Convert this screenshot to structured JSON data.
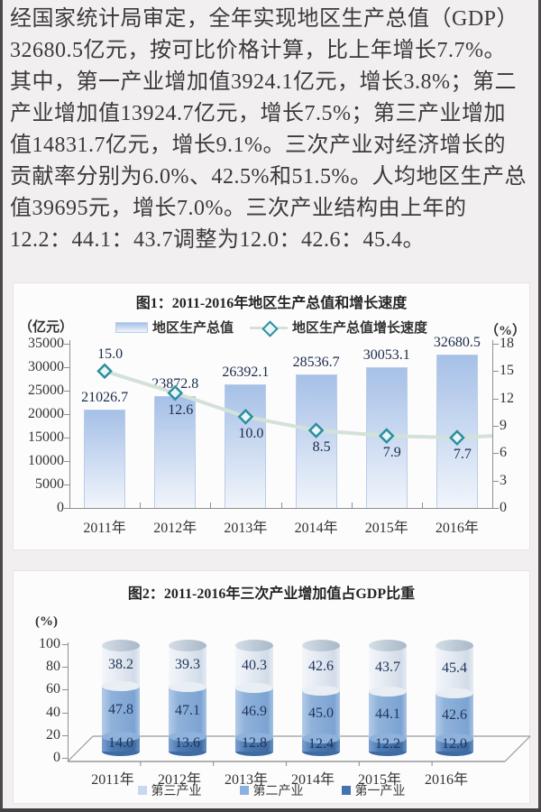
{
  "page": {
    "background": "#f1eff0",
    "edge_color": "#4b494b",
    "panel_background": "#fcfcfc",
    "text_color": "#3b393a"
  },
  "paragraph": {
    "lines": [
      "经国家统计局审定，全年实现地区生产总值（GDP）",
      "32680.5亿元，按可比价格计算，比上年增长7.7%。",
      "其中，第一产业增加值3924.1亿元，增长3.8%；第二",
      "产业增加值13924.7亿元，增长7.5%；第三产业增加",
      "值14831.7亿元，增长9.1%。三次产业对经济增长的",
      "贡献率分别为6.0%、42.5%和51.5%。人均地区生产总",
      "值39695元，增长7.0%。三次产业结构由上年的",
      "12.2：44.1：43.7调整为12.0：42.6：45.4。"
    ]
  },
  "chart_data": [
    {
      "type": "bar",
      "subtype": "bar-with-line",
      "title": "图1：2011-2016年地区生产总值和增长速度",
      "categories": [
        "2011年",
        "2012年",
        "2013年",
        "2014年",
        "2015年",
        "2016年"
      ],
      "series": [
        {
          "name": "地区生产总值",
          "type": "bar",
          "axis": "left",
          "values": [
            21026.7,
            23872.8,
            26392.1,
            28536.7,
            30053.1,
            32680.5
          ]
        },
        {
          "name": "地区生产总值增长速度",
          "type": "line",
          "axis": "right",
          "values": [
            15.0,
            12.6,
            10.0,
            8.5,
            7.9,
            7.7
          ]
        }
      ],
      "left_axis": {
        "label": "（亿元）",
        "ticks": [
          35000,
          30000,
          25000,
          20000,
          15000,
          10000,
          5000,
          0
        ],
        "min": 0,
        "max": 35000
      },
      "right_axis": {
        "label": "（%）",
        "ticks": [
          18,
          15,
          12,
          9,
          6,
          3,
          0
        ],
        "min": 0,
        "max": 18
      },
      "legend_position": "top",
      "grid": false,
      "colors": {
        "bar_top": "#a6c0e7",
        "bar_bottom": "#f1f5fb",
        "bar_border": "#b9cde9",
        "line": "#d3e2d8",
        "marker_stroke": "#2d8f9e",
        "marker_fill": "#e8f5f6",
        "value_label": "#1c2b4a"
      }
    },
    {
      "type": "bar",
      "subtype": "stacked-cylinder-3d",
      "title": "图2：2011-2016年三次产业增加值占GDP比重",
      "ylabel": "(%)",
      "categories": [
        "2011年",
        "2012年",
        "2013年",
        "2014年",
        "2015年",
        "2016年"
      ],
      "series": [
        {
          "name": "第一产业",
          "values": [
            14.0,
            13.6,
            12.8,
            12.4,
            12.2,
            12.0
          ],
          "color": "#4d7cb5"
        },
        {
          "name": "第二产业",
          "values": [
            47.8,
            47.1,
            46.9,
            45.0,
            44.1,
            42.6
          ],
          "color": "#8fb2da"
        },
        {
          "name": "第三产业",
          "values": [
            38.2,
            39.3,
            40.3,
            42.6,
            43.7,
            45.4
          ],
          "color": "#e9eef5"
        }
      ],
      "stack_order_bottom_to_top": [
        "第一产业",
        "第二产业",
        "第三产业"
      ],
      "y_ticks": [
        0,
        20,
        40,
        60,
        80,
        100
      ],
      "ylim": [
        0,
        100
      ],
      "legend": [
        "第三产业",
        "第二产业",
        "第一产业"
      ],
      "legend_swatch_colors": {
        "第三产业": "#c7d9ee",
        "第二产业": "#8ab1e0",
        "第一产业": "#4473ad"
      },
      "legend_position": "bottom",
      "grid": false
    }
  ]
}
